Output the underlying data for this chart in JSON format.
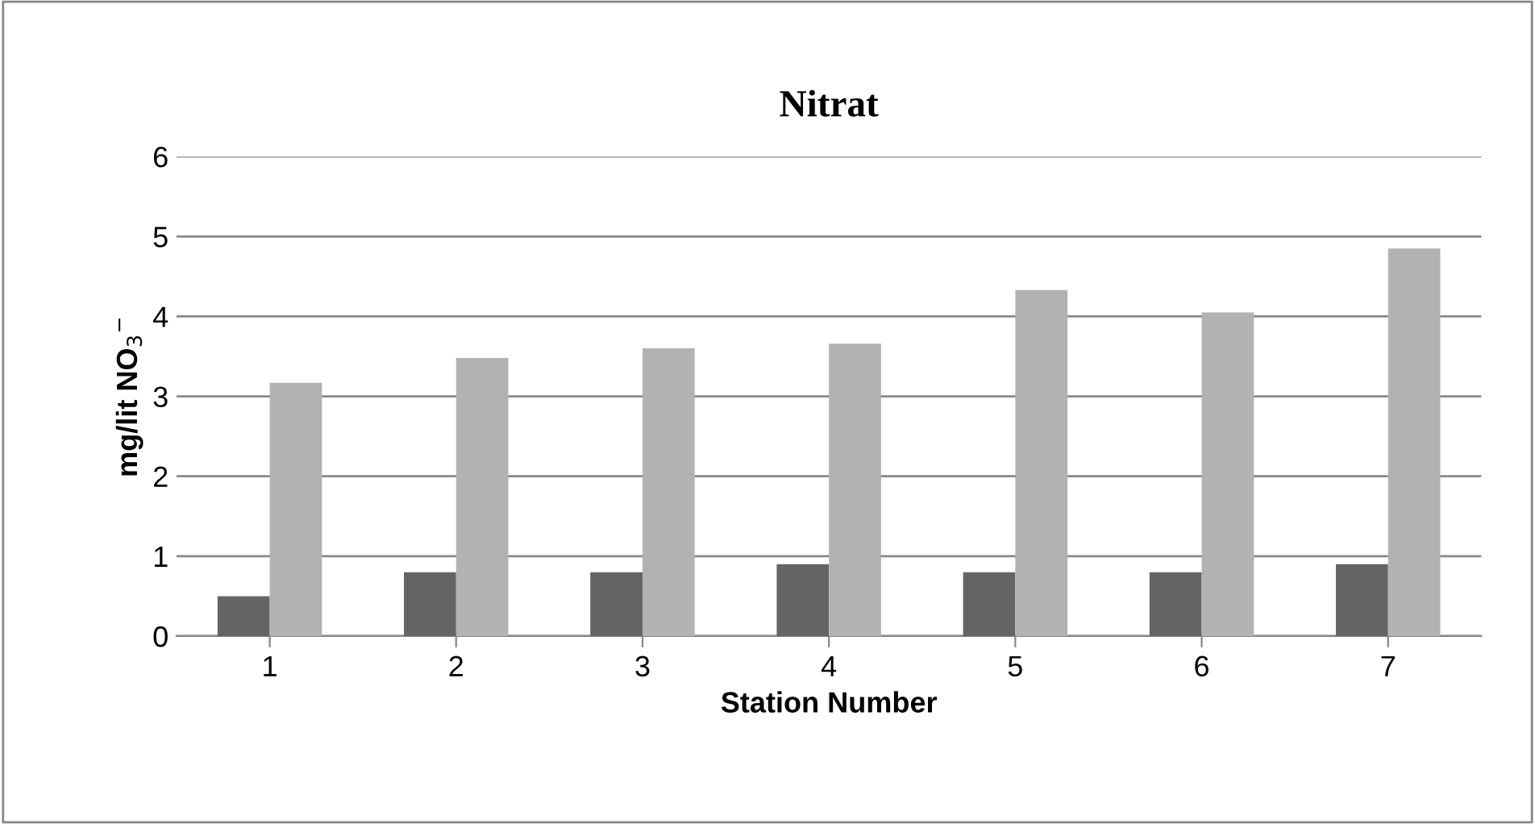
{
  "chart_data": {
    "type": "bar",
    "title": "Nitrat",
    "xlabel": "Station Number",
    "ylabel": "mg/lit NO$_{3}$$^{−}$",
    "categories": [
      "1",
      "2",
      "3",
      "4",
      "5",
      "6",
      "7"
    ],
    "series": [
      {
        "color": "#646464",
        "values": [
          0.5,
          0.8,
          0.8,
          0.9,
          0.8,
          0.8,
          0.9
        ]
      },
      {
        "color": "#b2b2b2",
        "values": [
          3.17,
          3.48,
          3.6,
          3.66,
          4.33,
          4.05,
          4.85
        ]
      }
    ],
    "ylim": [
      0,
      6
    ],
    "yticks": [
      0,
      1,
      2,
      3,
      4,
      5,
      6
    ],
    "grid": "y",
    "legend": false
  }
}
